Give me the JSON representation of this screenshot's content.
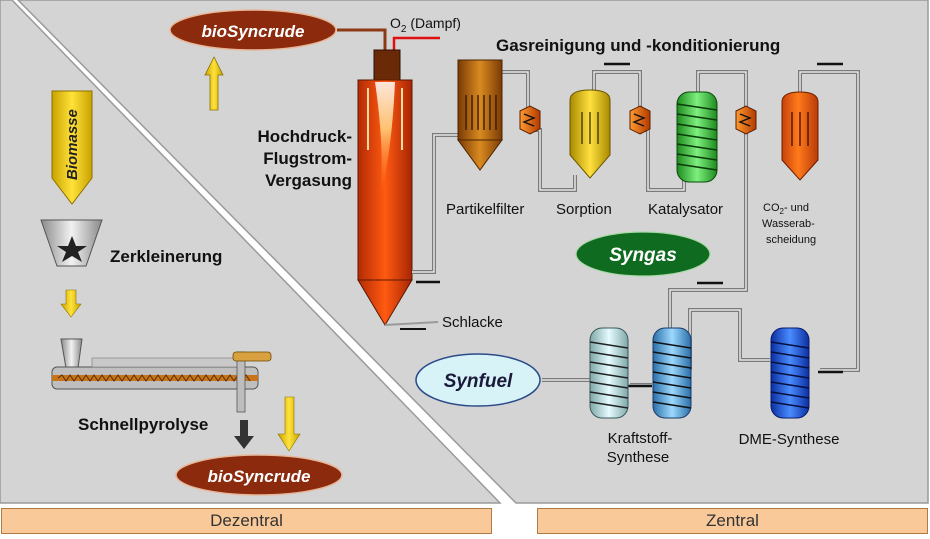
{
  "labels": {
    "biosyncrude_top": "bioSyncrude",
    "biosyncrude_bottom": "bioSyncrude",
    "biomasse": "Biomasse",
    "zerkleinerung": "Zerkleinerung",
    "schnellpyrolyse": "Schnellpyrolyse",
    "o2_main": "O",
    "o2_sub": "2",
    "o2_suffix": " (Dampf)",
    "vergasung_line1": "Hochdruck-",
    "vergasung_line2": "Flugstrom-",
    "vergasung_line3": "Vergasung",
    "gasreinigung": "Gasreinigung und -konditionierung",
    "partikelfilter": "Partikelfilter",
    "sorption": "Sorption",
    "katalysator": "Katalysator",
    "co2_main": "CO",
    "co2_sub": "2",
    "co2_suffix": "- und",
    "wasserab": "Wasserab-",
    "scheidung": "scheidung",
    "syngas": "Syngas",
    "schlacke": "Schlacke",
    "synfuel": "Synfuel",
    "kraftstoff_line1": "Kraftstoff-",
    "kraftstoff_line2": "Synthese",
    "dme": "DME-Synthese"
  },
  "footer": {
    "dezentral": "Dezentral",
    "zentral": "Zentral"
  },
  "colors": {
    "panel": "#d4d4d4",
    "ellipse_brown": "#8b2a0c",
    "syngas_green": "#0f6b1f",
    "synfuel_blue": "#d8f3f8",
    "arrow_yellow": "#f5c800",
    "footer_fill": "#f9c99a"
  }
}
